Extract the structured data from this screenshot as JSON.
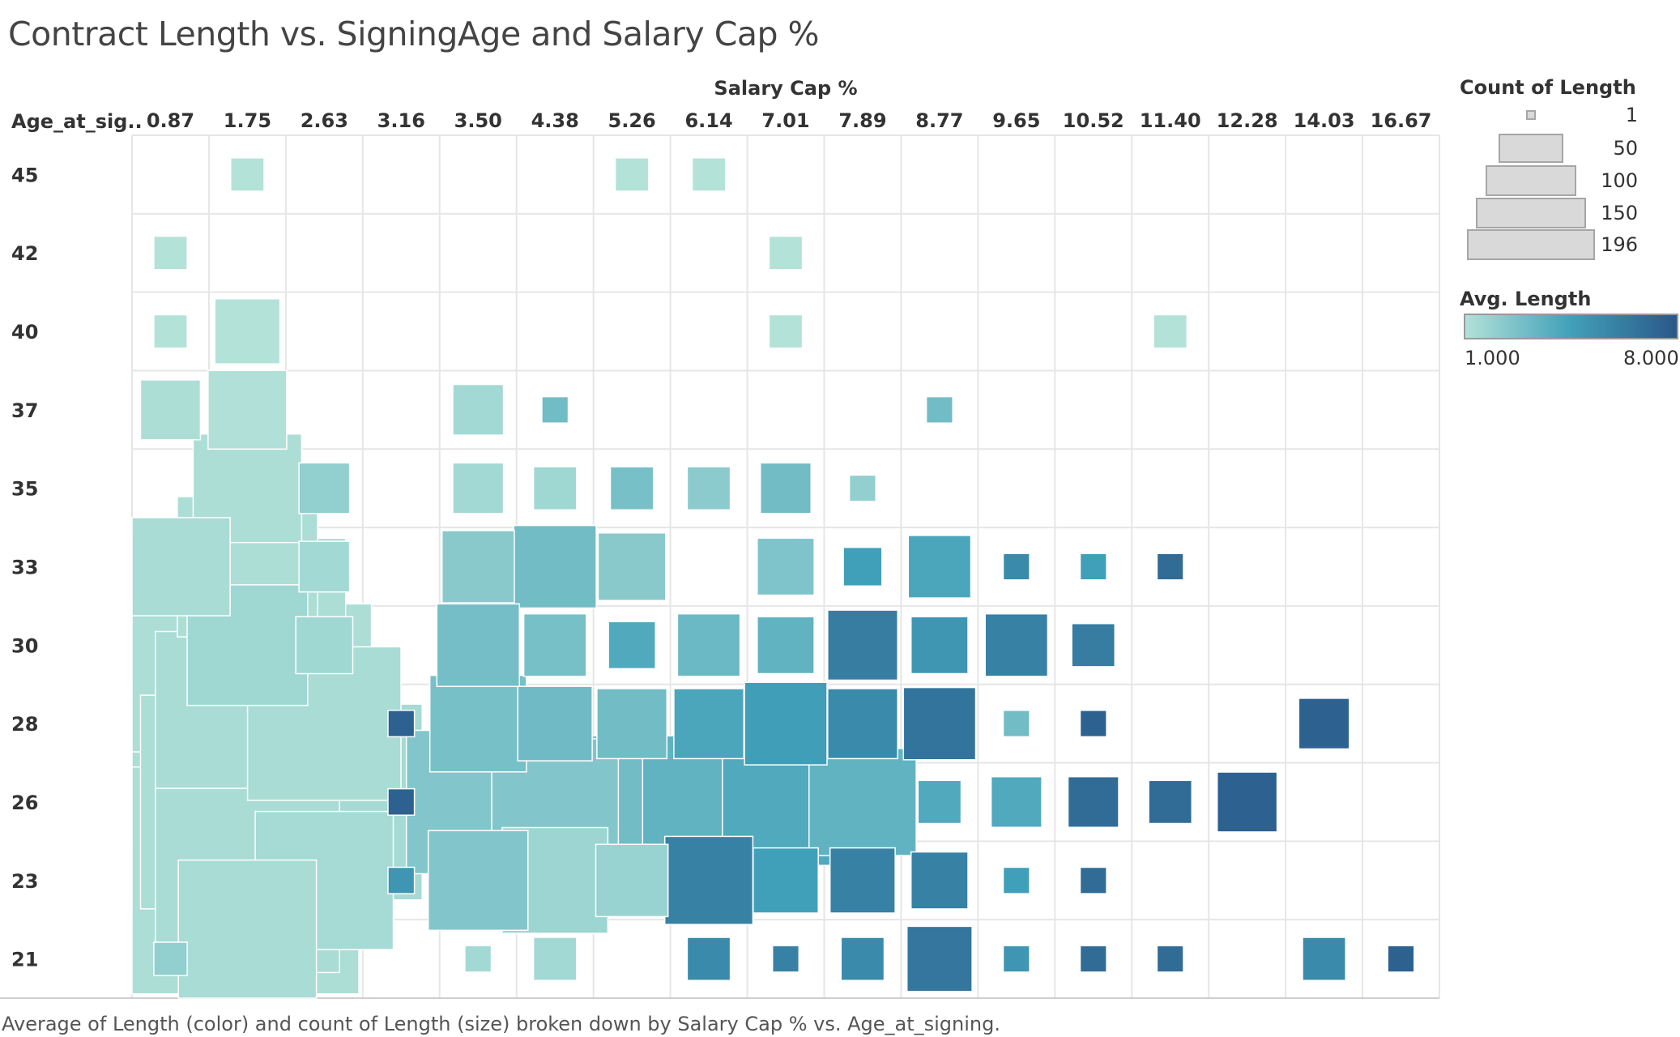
{
  "title": "Contract Length vs. SigningAge and Salary Cap %",
  "caption": "Average of Length (color) and count of Length (size) broken down by Salary Cap % vs. Age_at_signing.",
  "colors": {
    "low": "#b3e2d8",
    "mid": "#41a0b9",
    "high": "#2a5788",
    "grid": "#e6e6e6",
    "legend_gray": "#d9d9d9"
  },
  "size_legend": {
    "title": "Count of Length",
    "labels": [
      "1",
      "50",
      "100",
      "150",
      "196"
    ]
  },
  "color_legend": {
    "title": "Avg. Length",
    "min_label": "1.000",
    "max_label": "8.000"
  },
  "chart_data": {
    "type": "heatmap",
    "xlabel": "Salary Cap %",
    "ylabel": "Age_at_sig..",
    "x_categories": [
      "0.87",
      "1.75",
      "2.63",
      "3.16",
      "3.50",
      "4.38",
      "5.26",
      "6.14",
      "7.01",
      "7.89",
      "8.77",
      "9.65",
      "10.52",
      "11.40",
      "12.28",
      "14.03",
      "16.67"
    ],
    "y_categories": [
      "45",
      "42",
      "40",
      "37",
      "35",
      "33",
      "30",
      "28",
      "26",
      "23",
      "21"
    ],
    "size_measure": "Count of Length",
    "color_measure": "Avg. Length",
    "size_range": [
      1,
      196
    ],
    "color_range": [
      1.0,
      8.0
    ],
    "cells": [
      {
        "x": "1.75",
        "y": "45",
        "count": 3,
        "avg": 1.0
      },
      {
        "x": "5.26",
        "y": "45",
        "count": 3,
        "avg": 1.0
      },
      {
        "x": "6.14",
        "y": "45",
        "count": 3,
        "avg": 1.0
      },
      {
        "x": "0.87",
        "y": "42",
        "count": 3,
        "avg": 1.0
      },
      {
        "x": "7.01",
        "y": "42",
        "count": 3,
        "avg": 1.0
      },
      {
        "x": "0.87",
        "y": "40",
        "count": 3,
        "avg": 1.0
      },
      {
        "x": "1.75",
        "y": "40",
        "count": 12,
        "avg": 1.0
      },
      {
        "x": "7.01",
        "y": "40",
        "count": 3,
        "avg": 1.0
      },
      {
        "x": "11.40",
        "y": "40",
        "count": 3,
        "avg": 1.0
      },
      {
        "x": "0.87",
        "y": "37",
        "count": 10,
        "avg": 1.2
      },
      {
        "x": "1.75",
        "y": "37",
        "count": 18,
        "avg": 1.1
      },
      {
        "x": "3.50",
        "y": "37",
        "count": 7,
        "avg": 1.5
      },
      {
        "x": "4.38",
        "y": "37",
        "count": 2,
        "avg": 3.0
      },
      {
        "x": "8.77",
        "y": "37",
        "count": 2,
        "avg": 3.0
      },
      {
        "x": "1.75",
        "y": "35",
        "count": 36,
        "avg": 1.2
      },
      {
        "x": "2.63",
        "y": "35",
        "count": 7,
        "avg": 2.0
      },
      {
        "x": "3.50",
        "y": "35",
        "count": 7,
        "avg": 1.5
      },
      {
        "x": "4.38",
        "y": "35",
        "count": 5,
        "avg": 1.6
      },
      {
        "x": "5.26",
        "y": "35",
        "count": 5,
        "avg": 2.8
      },
      {
        "x": "6.14",
        "y": "35",
        "count": 5,
        "avg": 2.2
      },
      {
        "x": "7.01",
        "y": "35",
        "count": 7,
        "avg": 3.0
      },
      {
        "x": "7.89",
        "y": "35",
        "count": 2,
        "avg": 2.0
      },
      {
        "x": "0.87",
        "y": "33",
        "count": 29,
        "avg": 1.3
      },
      {
        "x": "1.75",
        "y": "33",
        "count": 62,
        "avg": 1.2
      },
      {
        "x": "2.63",
        "y": "33",
        "count": 7,
        "avg": 1.5
      },
      {
        "x": "3.50",
        "y": "33",
        "count": 15,
        "avg": 2.3
      },
      {
        "x": "4.38",
        "y": "33",
        "count": 20,
        "avg": 3.0
      },
      {
        "x": "5.26",
        "y": "33",
        "count": 13,
        "avg": 2.3
      },
      {
        "x": "7.01",
        "y": "33",
        "count": 9,
        "avg": 2.6
      },
      {
        "x": "7.89",
        "y": "33",
        "count": 4,
        "avg": 4.5
      },
      {
        "x": "8.77",
        "y": "33",
        "count": 11,
        "avg": 4.2
      },
      {
        "x": "9.65",
        "y": "33",
        "count": 2,
        "avg": 5.5
      },
      {
        "x": "10.52",
        "y": "33",
        "count": 2,
        "avg": 4.5
      },
      {
        "x": "11.40",
        "y": "33",
        "count": 2,
        "avg": 7.0
      },
      {
        "x": "0.87",
        "y": "30",
        "count": 150,
        "avg": 1.2
      },
      {
        "x": "1.75",
        "y": "30",
        "count": 45,
        "avg": 1.6
      },
      {
        "x": "2.63",
        "y": "30",
        "count": 9,
        "avg": 1.6
      },
      {
        "x": "3.50",
        "y": "30",
        "count": 20,
        "avg": 2.9
      },
      {
        "x": "4.38",
        "y": "30",
        "count": 11,
        "avg": 2.8
      },
      {
        "x": "5.26",
        "y": "30",
        "count": 6,
        "avg": 4.0
      },
      {
        "x": "6.14",
        "y": "30",
        "count": 11,
        "avg": 3.2
      },
      {
        "x": "7.01",
        "y": "30",
        "count": 9,
        "avg": 3.5
      },
      {
        "x": "7.89",
        "y": "30",
        "count": 14,
        "avg": 6.2
      },
      {
        "x": "8.77",
        "y": "30",
        "count": 9,
        "avg": 5.0
      },
      {
        "x": "9.65",
        "y": "30",
        "count": 11,
        "avg": 6.0
      },
      {
        "x": "10.52",
        "y": "30",
        "count": 5,
        "avg": 6.2
      },
      {
        "x": "0.87",
        "y": "28",
        "count": 190,
        "avg": 1.2
      },
      {
        "x": "1.75",
        "y": "28",
        "count": 110,
        "avg": 1.3
      },
      {
        "x": "2.63",
        "y": "28",
        "count": 75,
        "avg": 1.3
      },
      {
        "x": "3.16",
        "y": "28",
        "count": 2,
        "avg": 7.5
      },
      {
        "x": "3.50",
        "y": "28",
        "count": 28,
        "avg": 2.8
      },
      {
        "x": "4.38",
        "y": "28",
        "count": 16,
        "avg": 3.1
      },
      {
        "x": "5.26",
        "y": "28",
        "count": 14,
        "avg": 3.0
      },
      {
        "x": "6.14",
        "y": "28",
        "count": 14,
        "avg": 4.2
      },
      {
        "x": "7.01",
        "y": "28",
        "count": 20,
        "avg": 4.6
      },
      {
        "x": "7.89",
        "y": "28",
        "count": 14,
        "avg": 5.5
      },
      {
        "x": "8.77",
        "y": "28",
        "count": 15,
        "avg": 6.6
      },
      {
        "x": "9.65",
        "y": "28",
        "count": 2,
        "avg": 3.0
      },
      {
        "x": "10.52",
        "y": "28",
        "count": 2,
        "avg": 7.5
      },
      {
        "x": "14.03",
        "y": "28",
        "count": 7,
        "avg": 7.5
      },
      {
        "x": "0.87",
        "y": "26",
        "count": 196,
        "avg": 1.2
      },
      {
        "x": "1.75",
        "y": "26",
        "count": 150,
        "avg": 1.2
      },
      {
        "x": "2.63",
        "y": "26",
        "count": 125,
        "avg": 1.4
      },
      {
        "x": "3.16",
        "y": "26",
        "count": 2,
        "avg": 7.5
      },
      {
        "x": "3.50",
        "y": "26",
        "count": 65,
        "avg": 2.5
      },
      {
        "x": "4.38",
        "y": "26",
        "count": 50,
        "avg": 2.5
      },
      {
        "x": "5.26",
        "y": "26",
        "count": 55,
        "avg": 3.0
      },
      {
        "x": "6.14",
        "y": "26",
        "count": 55,
        "avg": 3.5
      },
      {
        "x": "7.01",
        "y": "26",
        "count": 50,
        "avg": 4.0
      },
      {
        "x": "7.89",
        "y": "26",
        "count": 35,
        "avg": 3.5
      },
      {
        "x": "8.77",
        "y": "26",
        "count": 5,
        "avg": 4.0
      },
      {
        "x": "9.65",
        "y": "26",
        "count": 7,
        "avg": 4.0
      },
      {
        "x": "10.52",
        "y": "26",
        "count": 7,
        "avg": 7.0
      },
      {
        "x": "11.40",
        "y": "26",
        "count": 5,
        "avg": 7.0
      },
      {
        "x": "12.28",
        "y": "26",
        "count": 10,
        "avg": 7.5
      },
      {
        "x": "0.87",
        "y": "23",
        "count": 170,
        "avg": 1.2
      },
      {
        "x": "1.75",
        "y": "23",
        "count": 110,
        "avg": 1.3
      },
      {
        "x": "2.63",
        "y": "23",
        "count": 60,
        "avg": 1.4
      },
      {
        "x": "3.16",
        "y": "23",
        "count": 2,
        "avg": 5.0
      },
      {
        "x": "3.50",
        "y": "23",
        "count": 30,
        "avg": 2.5
      },
      {
        "x": "4.38",
        "y": "23",
        "count": 34,
        "avg": 1.7
      },
      {
        "x": "5.26",
        "y": "23",
        "count": 15,
        "avg": 1.8
      },
      {
        "x": "6.14",
        "y": "23",
        "count": 23,
        "avg": 6.0
      },
      {
        "x": "7.01",
        "y": "23",
        "count": 12,
        "avg": 4.5
      },
      {
        "x": "7.89",
        "y": "23",
        "count": 12,
        "avg": 6.0
      },
      {
        "x": "8.77",
        "y": "23",
        "count": 9,
        "avg": 6.0
      },
      {
        "x": "9.65",
        "y": "23",
        "count": 2,
        "avg": 4.5
      },
      {
        "x": "10.52",
        "y": "23",
        "count": 2,
        "avg": 7.0
      },
      {
        "x": "0.87",
        "y": "21",
        "count": 3,
        "avg": 2.0
      },
      {
        "x": "1.75",
        "y": "21",
        "count": 60,
        "avg": 1.3
      },
      {
        "x": "3.50",
        "y": "21",
        "count": 2,
        "avg": 1.5
      },
      {
        "x": "4.38",
        "y": "21",
        "count": 5,
        "avg": 1.5
      },
      {
        "x": "6.14",
        "y": "21",
        "count": 5,
        "avg": 5.5
      },
      {
        "x": "7.01",
        "y": "21",
        "count": 2,
        "avg": 6.0
      },
      {
        "x": "7.89",
        "y": "21",
        "count": 5,
        "avg": 5.5
      },
      {
        "x": "8.77",
        "y": "21",
        "count": 12,
        "avg": 6.5
      },
      {
        "x": "9.65",
        "y": "21",
        "count": 2,
        "avg": 5.0
      },
      {
        "x": "10.52",
        "y": "21",
        "count": 2,
        "avg": 7.0
      },
      {
        "x": "11.40",
        "y": "21",
        "count": 2,
        "avg": 7.0
      },
      {
        "x": "14.03",
        "y": "21",
        "count": 5,
        "avg": 5.5
      },
      {
        "x": "16.67",
        "y": "21",
        "count": 2,
        "avg": 7.5
      }
    ]
  }
}
